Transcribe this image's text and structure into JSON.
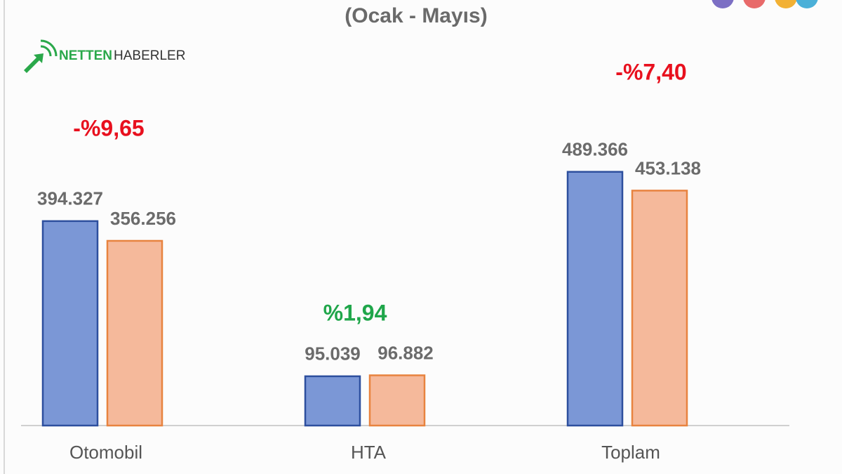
{
  "brand": {
    "strong": "NETTEN",
    "light": "HABERLER"
  },
  "chart_data": {
    "type": "bar",
    "subtitle": "(Ocak - Mayıs)",
    "categories": [
      "Otomobil",
      "HTA",
      "Toplam"
    ],
    "series": [
      {
        "color": "#7b97d6",
        "values": [
          394327,
          95039,
          489366
        ],
        "value_labels": [
          "394.327",
          "95.039",
          "489.366"
        ]
      },
      {
        "color": "#f5b99b",
        "values": [
          356256,
          96882,
          453138
        ],
        "value_labels": [
          "356.256",
          "96.882",
          "453.138"
        ]
      }
    ],
    "ylim": [
      0,
      600000
    ],
    "annotations": [
      {
        "text": "-%9,65",
        "color": "#e8101e"
      },
      {
        "text": "%1,94",
        "color": "#1fa64a"
      },
      {
        "text": "-%7,40",
        "color": "#e8101e"
      }
    ]
  }
}
